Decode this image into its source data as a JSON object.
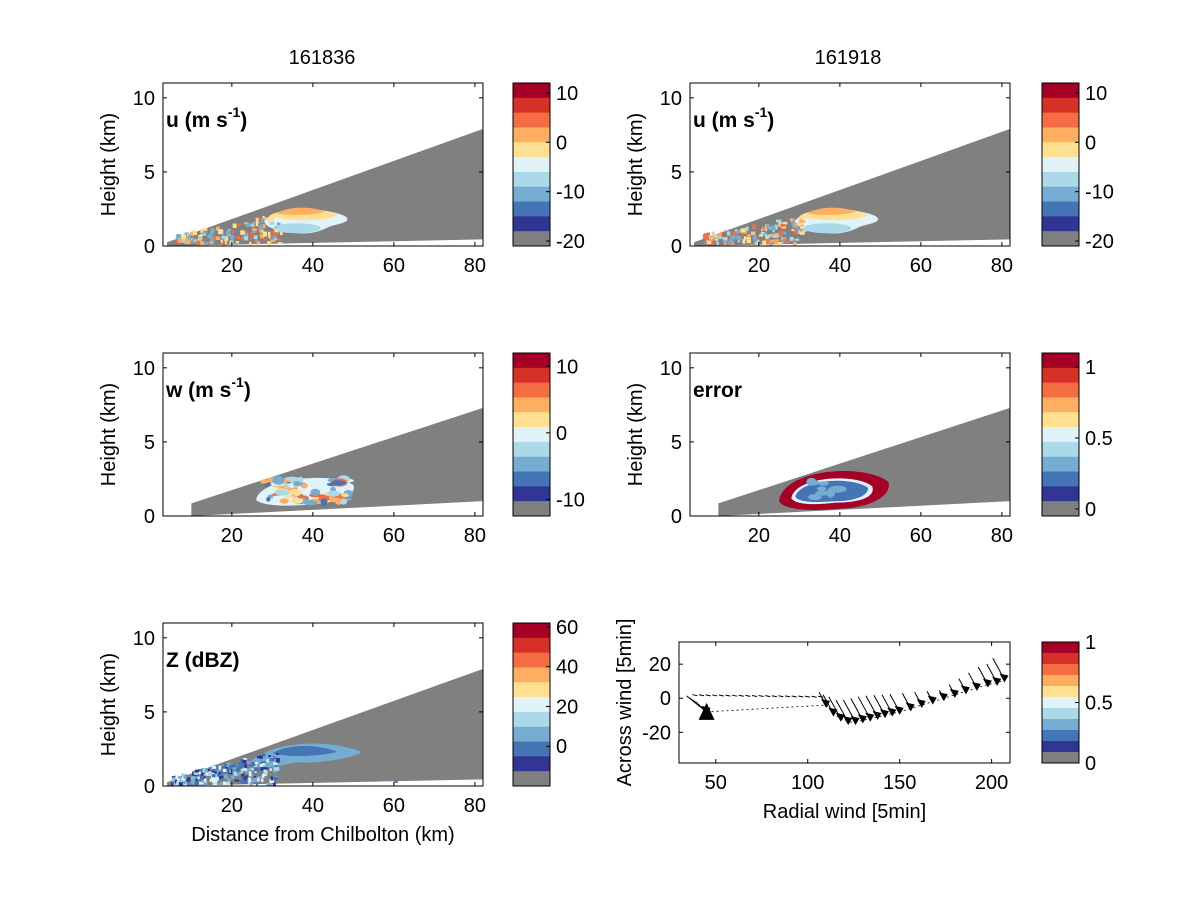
{
  "colors": {
    "gray": "#808080",
    "colormap": [
      "#808080",
      "#313695",
      "#4575b4",
      "#74add1",
      "#abd9e9",
      "#e0f3f8",
      "#fee090",
      "#fdae61",
      "#f46d43",
      "#d73027",
      "#a50026"
    ]
  },
  "columns": {
    "left_title": "161836",
    "right_title": "161918"
  },
  "panels": [
    {
      "id": "u-left",
      "label": "u (m s",
      "label_sup": "-1",
      "label_tail": ")"
    },
    {
      "id": "u-right",
      "label": "u (m s",
      "label_sup": "-1",
      "label_tail": ")"
    },
    {
      "id": "w-left",
      "label": "w (m s",
      "label_sup": "-1",
      "label_tail": ")"
    },
    {
      "id": "error-right",
      "label": "error",
      "label_sup": "",
      "label_tail": ""
    },
    {
      "id": "z-left",
      "label": "Z (dBZ)",
      "label_sup": "",
      "label_tail": ""
    },
    {
      "id": "wind-right",
      "label": "",
      "label_sup": "",
      "label_tail": ""
    }
  ],
  "chart_data": [
    {
      "id": "u-left",
      "type": "heatmap",
      "title": "161836",
      "panel_label": "u (m s-1)",
      "xlabel": "",
      "ylabel": "Height (km)",
      "xlim": [
        3,
        82
      ],
      "ylim": [
        0,
        11
      ],
      "xticks": [
        20,
        40,
        60,
        80
      ],
      "yticks": [
        0,
        5,
        10
      ],
      "grid": false,
      "colorbar": {
        "ticks": [
          10,
          0,
          -10,
          -20
        ],
        "range": [
          -21,
          12
        ],
        "levels": 11
      }
    },
    {
      "id": "u-right",
      "type": "heatmap",
      "title": "161918",
      "panel_label": "u (m s-1)",
      "xlabel": "",
      "ylabel": "Height (km)",
      "xlim": [
        3,
        82
      ],
      "ylim": [
        0,
        11
      ],
      "xticks": [
        20,
        40,
        60,
        80
      ],
      "yticks": [
        0,
        5,
        10
      ],
      "grid": false,
      "colorbar": {
        "ticks": [
          10,
          0,
          -10,
          -20
        ],
        "range": [
          -21,
          12
        ],
        "levels": 11
      }
    },
    {
      "id": "w-left",
      "type": "heatmap",
      "panel_label": "w (m s-1)",
      "xlabel": "",
      "ylabel": "Height (km)",
      "xlim": [
        3,
        82
      ],
      "ylim": [
        0,
        11
      ],
      "xticks": [
        20,
        40,
        60,
        80
      ],
      "yticks": [
        0,
        5,
        10
      ],
      "grid": false,
      "colorbar": {
        "ticks": [
          10,
          0,
          -10
        ],
        "range": [
          -12.5,
          12
        ],
        "levels": 11
      }
    },
    {
      "id": "error-right",
      "type": "heatmap",
      "panel_label": "error",
      "xlabel": "",
      "ylabel": "Height (km)",
      "xlim": [
        3,
        82
      ],
      "ylim": [
        0,
        11
      ],
      "xticks": [
        20,
        40,
        60,
        80
      ],
      "yticks": [
        0,
        5,
        10
      ],
      "grid": false,
      "colorbar": {
        "ticks": [
          1,
          0.5,
          0
        ],
        "range": [
          -0.05,
          1.1
        ],
        "levels": 11
      }
    },
    {
      "id": "z-left",
      "type": "heatmap",
      "panel_label": "Z (dBZ)",
      "xlabel": "Distance from Chilbolton (km)",
      "ylabel": "Height (km)",
      "xlim": [
        3,
        82
      ],
      "ylim": [
        0,
        11
      ],
      "xticks": [
        20,
        40,
        60,
        80
      ],
      "yticks": [
        0,
        5,
        10
      ],
      "grid": false,
      "colorbar": {
        "ticks": [
          60,
          40,
          20,
          0
        ],
        "range": [
          -20,
          62
        ],
        "levels": 11
      }
    },
    {
      "id": "wind-right",
      "type": "scatter",
      "xlabel": "Radial wind [5min]",
      "ylabel": "Across wind [5min]",
      "xlim": [
        30,
        210
      ],
      "ylim": [
        -38,
        33
      ],
      "xticks": [
        50,
        100,
        150,
        200
      ],
      "yticks": [
        20,
        0,
        -20
      ],
      "grid": false,
      "points": [
        [
          45,
          -8
        ],
        [
          110,
          -4
        ],
        [
          114,
          -9
        ],
        [
          118,
          -12
        ],
        [
          122,
          -14
        ],
        [
          126,
          -14
        ],
        [
          130,
          -13
        ],
        [
          134,
          -12
        ],
        [
          138,
          -11
        ],
        [
          142,
          -10
        ],
        [
          146,
          -9
        ],
        [
          150,
          -8
        ],
        [
          156,
          -6
        ],
        [
          162,
          -4
        ],
        [
          168,
          -2
        ],
        [
          174,
          0
        ],
        [
          180,
          2
        ],
        [
          186,
          4
        ],
        [
          192,
          6
        ],
        [
          198,
          8
        ],
        [
          203,
          9
        ],
        [
          207,
          11
        ]
      ],
      "colorbar": {
        "ticks": [
          1,
          0.5,
          0
        ],
        "range": [
          0,
          1
        ],
        "levels": 11
      }
    }
  ]
}
